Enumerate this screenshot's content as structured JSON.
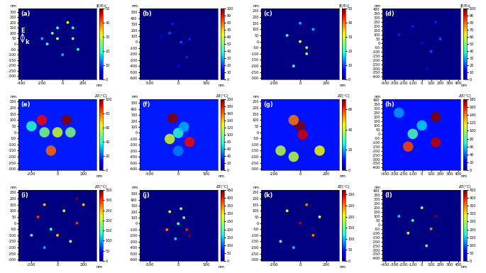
{
  "chart_data": [
    {
      "type": "heatmap",
      "label": "(a)",
      "x_unit": "nm",
      "y_unit": "nm",
      "colorbar_title": "|E/E₀|",
      "xlim": [
        -430,
        330
      ],
      "xticks": [
        -400,
        -200,
        0,
        200
      ],
      "ylim": [
        -330,
        330
      ],
      "yticks": [
        300,
        250,
        200,
        150,
        100,
        50,
        0,
        -50,
        -100,
        -150,
        -200,
        -250,
        -300
      ],
      "clim": [
        0,
        50
      ],
      "cticks": [
        0,
        10,
        20,
        30,
        40,
        50
      ],
      "background": 0,
      "cells": [
        [
          -100,
          100,
          25
        ],
        [
          -50,
          150,
          20
        ],
        [
          50,
          200,
          30
        ],
        [
          100,
          50,
          25
        ],
        [
          150,
          -50,
          20
        ],
        [
          0,
          -100,
          15
        ],
        [
          -150,
          0,
          20
        ],
        [
          -50,
          50,
          30
        ],
        [
          100,
          150,
          20
        ],
        [
          -200,
          50,
          15
        ]
      ],
      "annotations": [
        {
          "text": "E",
          "x": -390,
          "y": 120
        },
        {
          "text": "k",
          "x": -350,
          "y": 15
        }
      ]
    },
    {
      "type": "heatmap",
      "label": "(b)",
      "x_unit": "nm",
      "y_unit": "nm",
      "colorbar_title": null,
      "xlim": [
        -680,
        700
      ],
      "xticks": [
        -500,
        0,
        500
      ],
      "ylim": [
        -620,
        560
      ],
      "yticks": [
        500,
        400,
        300,
        200,
        100,
        0,
        -100,
        -200,
        -300,
        -400,
        -500,
        -600
      ],
      "clim": [
        0,
        100
      ],
      "cticks": [
        0,
        10,
        20,
        30,
        40,
        50,
        60,
        70,
        80,
        90,
        100
      ],
      "background": 0,
      "cells": [
        [
          -150,
          150,
          20
        ],
        [
          -100,
          300,
          15
        ],
        [
          50,
          0,
          20
        ],
        [
          150,
          -250,
          15
        ],
        [
          -300,
          100,
          10
        ],
        [
          0,
          -400,
          10
        ],
        [
          200,
          50,
          15
        ]
      ]
    },
    {
      "type": "heatmap",
      "label": "(c)",
      "x_unit": "nm",
      "y_unit": "nm",
      "colorbar_title": "|E/E₀|",
      "xlim": [
        -300,
        300
      ],
      "xticks": [
        -200,
        0,
        200
      ],
      "ylim": [
        -310,
        270
      ],
      "yticks": [
        250,
        200,
        150,
        100,
        50,
        0,
        -50,
        -100,
        -150,
        -200,
        -250,
        -300
      ],
      "clim": [
        0,
        50
      ],
      "cticks": [
        0,
        10,
        20,
        30,
        40,
        50
      ],
      "background": 0,
      "cells": [
        [
          0,
          0,
          30
        ],
        [
          50,
          -50,
          25
        ],
        [
          -100,
          50,
          20
        ],
        [
          -50,
          -200,
          20
        ],
        [
          100,
          100,
          15
        ],
        [
          0,
          150,
          15
        ],
        [
          50,
          -100,
          25
        ]
      ]
    },
    {
      "type": "heatmap",
      "label": "(d)",
      "x_unit": "nm",
      "y_unit": "nm",
      "colorbar_title": "|E/E₀|",
      "xlim": [
        -430,
        420
      ],
      "xticks": [
        -400,
        -300,
        -200,
        -100,
        0,
        100,
        200,
        300,
        400
      ],
      "ylim": [
        -430,
        410
      ],
      "yticks": [
        400,
        350,
        300,
        250,
        200,
        150,
        100,
        50,
        0,
        -50,
        -100,
        -150,
        -200,
        -250,
        -300,
        -350,
        -400
      ],
      "clim": [
        0,
        100
      ],
      "cticks": [
        0,
        10,
        20,
        30,
        40,
        50,
        60,
        70,
        80,
        90,
        100
      ],
      "background": 0,
      "cells": [
        [
          -100,
          200,
          15
        ],
        [
          100,
          -100,
          20
        ],
        [
          0,
          0,
          10
        ],
        [
          -250,
          100,
          15
        ],
        [
          150,
          250,
          15
        ],
        [
          50,
          -300,
          10
        ],
        [
          200,
          50,
          20
        ]
      ]
    },
    {
      "type": "heatmap",
      "label": "(e)",
      "x_unit": "nm",
      "y_unit": "nm",
      "colorbar_title": "ΔT(°C)",
      "xlim": [
        -300,
        300
      ],
      "xticks": [
        -200,
        0,
        200
      ],
      "ylim": [
        -310,
        270
      ],
      "yticks": [
        250,
        200,
        150,
        100,
        50,
        0,
        -50,
        -100,
        -150,
        -200,
        -250,
        -300
      ],
      "clim": [
        0,
        100
      ],
      "cticks": [
        0,
        20,
        40,
        60,
        80,
        100
      ],
      "background": 15,
      "cells": [
        [
          -120,
          100,
          90
        ],
        [
          70,
          100,
          100
        ],
        [
          -50,
          -150,
          80
        ],
        [
          0,
          0,
          60
        ],
        [
          -100,
          0,
          50
        ],
        [
          100,
          0,
          50
        ],
        [
          -200,
          50,
          40
        ]
      ]
    },
    {
      "type": "heatmap",
      "label": "(f)",
      "x_unit": "nm",
      "y_unit": "nm",
      "colorbar_title": "ΔT(°C)",
      "xlim": [
        -680,
        700
      ],
      "xticks": [
        -500,
        0,
        500
      ],
      "ylim": [
        -620,
        560
      ],
      "yticks": [
        500,
        400,
        300,
        200,
        100,
        0,
        -100,
        -200,
        -300,
        -400,
        -500,
        -600
      ],
      "clim": [
        0,
        200
      ],
      "cticks": [
        0,
        20,
        40,
        60,
        80,
        100,
        120,
        140,
        160,
        180,
        200
      ],
      "background": 30,
      "cells": [
        [
          -100,
          250,
          200
        ],
        [
          200,
          -150,
          180
        ],
        [
          -150,
          -100,
          120
        ],
        [
          0,
          0,
          80
        ],
        [
          100,
          100,
          60
        ],
        [
          0,
          -300,
          50
        ]
      ]
    },
    {
      "type": "heatmap",
      "label": "(g)",
      "x_unit": "nm",
      "y_unit": "nm",
      "colorbar_title": "ΔT(°C)",
      "xlim": [
        -300,
        300
      ],
      "xticks": [
        -200,
        0,
        200
      ],
      "ylim": [
        -310,
        270
      ],
      "yticks": [
        250,
        200,
        150,
        100,
        50,
        0,
        -50,
        -100,
        -150,
        -200,
        -250,
        -300
      ],
      "clim": [
        0,
        70
      ],
      "cticks": [
        0,
        20,
        40,
        60
      ],
      "background": 10,
      "cells": [
        [
          0,
          50,
          70
        ],
        [
          20,
          -20,
          65
        ],
        [
          -50,
          100,
          55
        ],
        [
          150,
          -150,
          45
        ],
        [
          -150,
          -150,
          40
        ],
        [
          -50,
          -200,
          40
        ]
      ]
    },
    {
      "type": "heatmap",
      "label": "(h)",
      "x_unit": "nm",
      "y_unit": "nm",
      "colorbar_title": "ΔT(°C)",
      "xlim": [
        -430,
        420
      ],
      "xticks": [
        -400,
        -300,
        -200,
        -100,
        0,
        100,
        200,
        300,
        400
      ],
      "ylim": [
        -430,
        410
      ],
      "yticks": [
        400,
        350,
        300,
        250,
        200,
        150,
        100,
        50,
        0,
        -50,
        -100,
        -150,
        -200,
        -250,
        -300,
        -350,
        -400
      ],
      "clim": [
        0,
        180
      ],
      "cticks": [
        0,
        20,
        40,
        60,
        80,
        100,
        120,
        140,
        160,
        180
      ],
      "background": 25,
      "cells": [
        [
          150,
          200,
          180
        ],
        [
          150,
          -100,
          170
        ],
        [
          -150,
          -150,
          150
        ],
        [
          -100,
          0,
          80
        ],
        [
          0,
          100,
          60
        ],
        [
          -250,
          250,
          50
        ]
      ]
    },
    {
      "type": "heatmap",
      "label": "(i)",
      "x_unit": "nm",
      "y_unit": "nm",
      "colorbar_title": "ΔT(°C)",
      "xlim": [
        -300,
        300
      ],
      "xticks": [
        -200,
        0,
        200
      ],
      "ylim": [
        -310,
        270
      ],
      "yticks": [
        250,
        200,
        150,
        100,
        50,
        0,
        -50,
        -100,
        -150,
        -200,
        -250,
        -300
      ],
      "clim": [
        0,
        350
      ],
      "cticks": [
        0,
        50,
        100,
        150,
        200,
        250,
        300,
        350
      ],
      "background": 0,
      "cells": [
        [
          -150,
          50,
          300
        ],
        [
          -100,
          150,
          250
        ],
        [
          50,
          100,
          200
        ],
        [
          150,
          0,
          300
        ],
        [
          0,
          -100,
          250
        ],
        [
          -50,
          -50,
          150
        ],
        [
          100,
          -150,
          200
        ],
        [
          -200,
          -100,
          150
        ],
        [
          200,
          150,
          250
        ],
        [
          -100,
          -200,
          100
        ],
        [
          150,
          200,
          350
        ]
      ]
    },
    {
      "type": "heatmap",
      "label": "(j)",
      "x_unit": "nm",
      "y_unit": "nm",
      "colorbar_title": "ΔT(°C)",
      "xlim": [
        -680,
        700
      ],
      "xticks": [
        -500,
        0,
        500
      ],
      "ylim": [
        -620,
        560
      ],
      "yticks": [
        500,
        400,
        300,
        200,
        100,
        0,
        -100,
        -200,
        -300,
        -400,
        -500,
        -600
      ],
      "clim": [
        0,
        450
      ],
      "cticks": [
        0,
        50,
        100,
        150,
        200,
        250,
        300,
        350,
        400,
        450
      ],
      "background": 0,
      "cells": [
        [
          -150,
          200,
          300
        ],
        [
          50,
          250,
          250
        ],
        [
          0,
          0,
          200
        ],
        [
          -200,
          -100,
          350
        ],
        [
          150,
          -100,
          400
        ],
        [
          100,
          100,
          200
        ],
        [
          -50,
          -250,
          150
        ],
        [
          200,
          -200,
          450
        ]
      ]
    },
    {
      "type": "heatmap",
      "label": "(k)",
      "x_unit": "nm",
      "y_unit": "nm",
      "colorbar_title": "ΔT(°C)",
      "xlim": [
        -300,
        300
      ],
      "xticks": [
        -200,
        0,
        200
      ],
      "ylim": [
        -310,
        270
      ],
      "yticks": [
        250,
        200,
        150,
        100,
        50,
        0,
        -50,
        -100,
        -150,
        -200,
        -250,
        -300
      ],
      "clim": [
        0,
        320
      ],
      "cticks": [
        0,
        50,
        100,
        150,
        200,
        250,
        300
      ],
      "background": 0,
      "cells": [
        [
          0,
          0,
          300
        ],
        [
          50,
          150,
          250
        ],
        [
          -100,
          100,
          200
        ],
        [
          100,
          -100,
          250
        ],
        [
          -150,
          -150,
          150
        ],
        [
          150,
          50,
          200
        ],
        [
          -50,
          -200,
          100
        ]
      ]
    },
    {
      "type": "heatmap",
      "label": "(l)",
      "x_unit": "nm",
      "y_unit": "nm",
      "colorbar_title": "ΔT(°C)",
      "xlim": [
        -430,
        420
      ],
      "xticks": [
        -400,
        -300,
        -200,
        -100,
        0,
        100,
        200,
        300,
        400
      ],
      "ylim": [
        -430,
        410
      ],
      "yticks": [
        400,
        350,
        300,
        250,
        200,
        150,
        100,
        50,
        0,
        -50,
        -100,
        -150,
        -200,
        -250,
        -300,
        -350,
        -400
      ],
      "clim": [
        0,
        450
      ],
      "cticks": [
        0,
        50,
        100,
        150,
        200,
        250,
        300,
        350,
        400,
        450
      ],
      "background": 0,
      "cells": [
        [
          150,
          100,
          450
        ],
        [
          100,
          -50,
          350
        ],
        [
          -150,
          -100,
          300
        ],
        [
          -100,
          50,
          200
        ],
        [
          0,
          200,
          250
        ],
        [
          -250,
          100,
          150
        ],
        [
          50,
          -250,
          200
        ]
      ]
    }
  ]
}
